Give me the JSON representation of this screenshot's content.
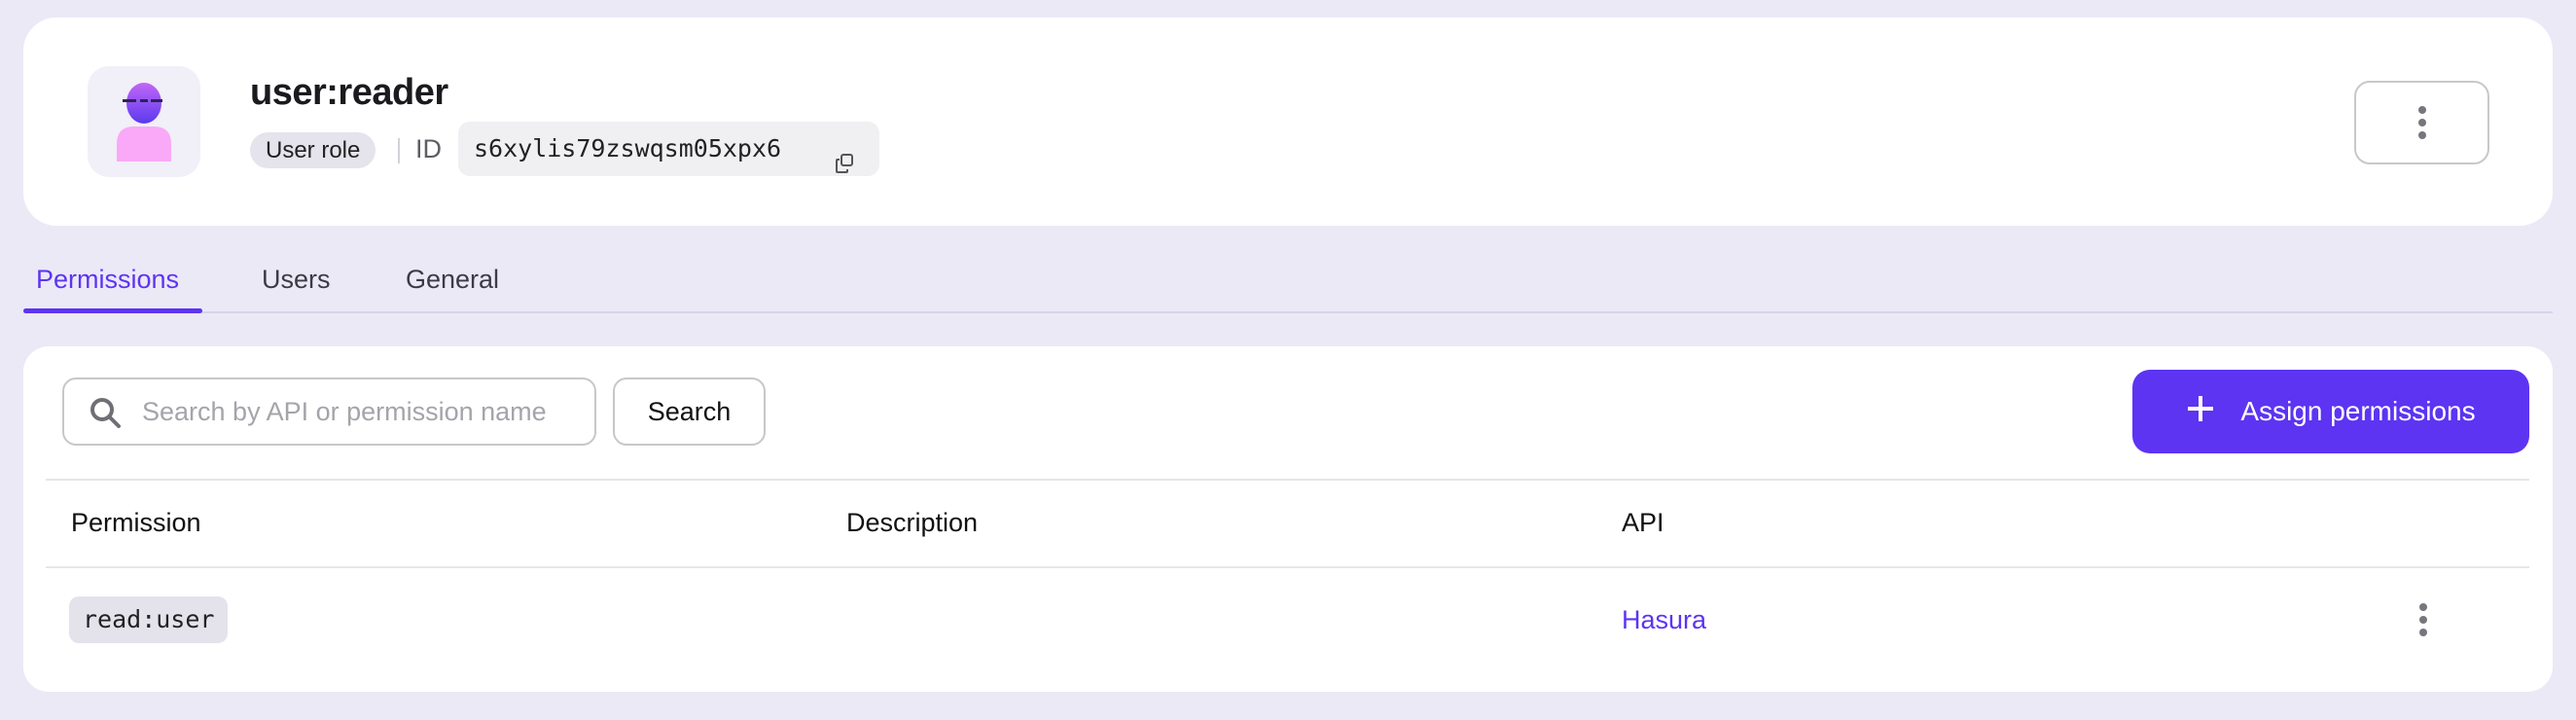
{
  "role": {
    "name": "user:reader",
    "type_label": "User role",
    "id_label": "ID",
    "id_value": "s6xylis79zswqsm05xpx6"
  },
  "tabs": [
    {
      "label": "Permissions",
      "active": true
    },
    {
      "label": "Users",
      "active": false
    },
    {
      "label": "General",
      "active": false
    }
  ],
  "toolbar": {
    "search_placeholder": "Search by API or permission name",
    "search_value": "",
    "search_button": "Search",
    "assign_button": "Assign permissions"
  },
  "table": {
    "columns": [
      "Permission",
      "Description",
      "API"
    ],
    "rows": [
      {
        "permission": "read:user",
        "description": "",
        "api": "Hasura"
      }
    ]
  },
  "colors": {
    "accent": "#5d34f2",
    "background": "#ebe9f6"
  },
  "icons": [
    "user-avatar-icon",
    "copy-icon",
    "more-vertical-icon",
    "search-icon",
    "plus-icon"
  ]
}
